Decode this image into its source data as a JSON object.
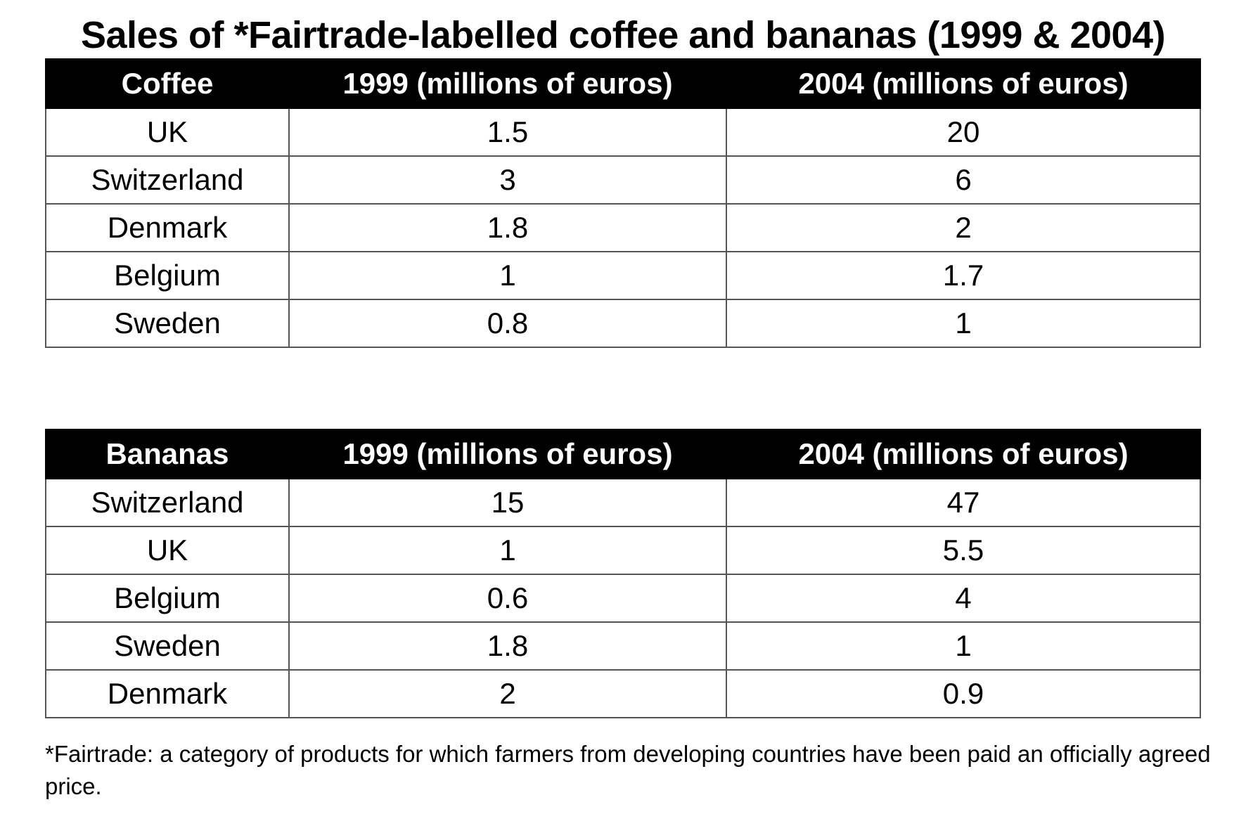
{
  "title": "Sales of *Fairtrade-labelled coffee and bananas (1999 & 2004)",
  "footnote": "*Fairtrade: a category of products for which farmers from developing countries have been paid an officially agreed price.",
  "chart_data": [
    {
      "type": "table",
      "title": "Sales of *Fairtrade-labelled coffee and bananas (1999 & 2004)",
      "columns": [
        "Coffee",
        "1999 (millions of euros)",
        "2004 (millions of euros)"
      ],
      "rows": [
        [
          "UK",
          "1.5",
          "20"
        ],
        [
          "Switzerland",
          "3",
          "6"
        ],
        [
          "Denmark",
          "1.8",
          "2"
        ],
        [
          "Belgium",
          "1",
          "1.7"
        ],
        [
          "Sweden",
          "0.8",
          "1"
        ]
      ]
    },
    {
      "type": "table",
      "columns": [
        "Bananas",
        "1999 (millions of euros)",
        "2004 (millions of euros)"
      ],
      "rows": [
        [
          "Switzerland",
          "15",
          "47"
        ],
        [
          "UK",
          "1",
          "5.5"
        ],
        [
          "Belgium",
          "0.6",
          "4"
        ],
        [
          "Sweden",
          "1.8",
          "1"
        ],
        [
          "Denmark",
          "2",
          "0.9"
        ]
      ]
    }
  ]
}
